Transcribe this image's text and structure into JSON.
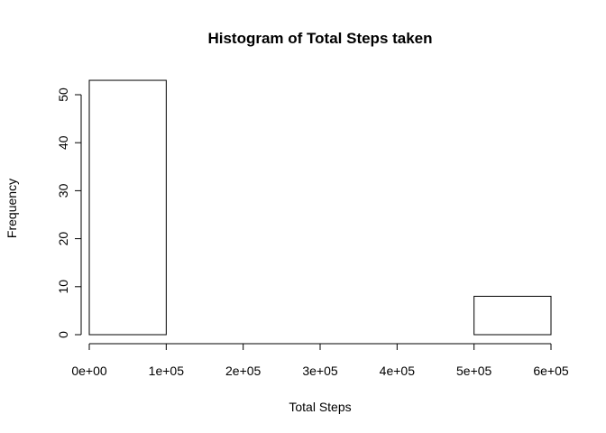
{
  "chart_data": {
    "type": "bar",
    "title": "Histogram of Total Steps taken",
    "xlabel": "Total Steps",
    "ylabel": "Frequency",
    "bins": [
      {
        "from": 0,
        "to": 100000,
        "count": 53
      },
      {
        "from": 100000,
        "to": 200000,
        "count": 0
      },
      {
        "from": 200000,
        "to": 300000,
        "count": 0
      },
      {
        "from": 300000,
        "to": 400000,
        "count": 0
      },
      {
        "from": 400000,
        "to": 500000,
        "count": 0
      },
      {
        "from": 500000,
        "to": 600000,
        "count": 8
      }
    ],
    "xlim": [
      0,
      600000
    ],
    "ylim": [
      0,
      53
    ],
    "x_ticks": [
      0,
      100000,
      200000,
      300000,
      400000,
      500000,
      600000
    ],
    "x_tick_labels": [
      "0e+00",
      "1e+05",
      "2e+05",
      "3e+05",
      "4e+05",
      "5e+05",
      "6e+05"
    ],
    "y_ticks": [
      0,
      10,
      20,
      30,
      40,
      50
    ],
    "y_tick_labels": [
      "0",
      "10",
      "20",
      "30",
      "40",
      "50"
    ],
    "grid": false,
    "legend": "none",
    "colors": {
      "bar_fill": "#ffffff",
      "bar_stroke": "#000000"
    }
  }
}
